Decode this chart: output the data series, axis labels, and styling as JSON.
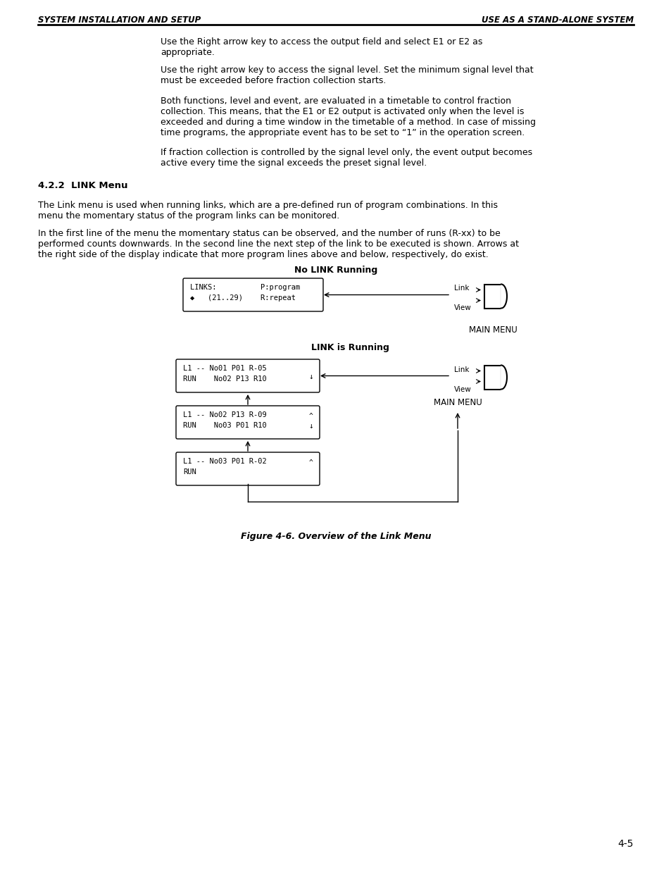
{
  "header_left": "SYSTEM INSTALLATION AND SETUP",
  "header_right": "USE AS A STAND-ALONE SYSTEM",
  "footer_page": "4-5",
  "bg_color": "#ffffff",
  "text_color": "#000000",
  "para1": "Use the Right arrow key to access the output field and select E1 or E2 as\nappropriate.",
  "para2": "Use the right arrow key to access the signal level. Set the minimum signal level that\nmust be exceeded before fraction collection starts.",
  "para3": "Both functions, level and event, are evaluated in a timetable to control fraction\ncollection. This means, that the E1 or E2 output is activated only when the level is\nexceeded and during a time window in the timetable of a method. In case of missing\ntime programs, the appropriate event has to be set to “1” in the operation screen.",
  "para4": "If fraction collection is controlled by the signal level only, the event output becomes\nactive every time the signal exceeds the preset signal level.",
  "section": "4.2.2  LINK Menu",
  "para5": "The Link menu is used when running links, which are a pre-defined run of program combinations. In this\nmenu the momentary status of the program links can be monitored.",
  "para6": "In the first line of the menu the momentary status can be observed, and the number of runs (R-xx) to be\nperformed counts downwards. In the second line the next step of the link to be executed is shown. Arrows at\nthe right side of the display indicate that more program lines above and below, respectively, do exist.",
  "fig_caption": "Figure 4-6. Overview of the Link Menu",
  "no_link_label": "No LINK Running",
  "link_running_label": "LINK is Running",
  "box1_line1": "LINKS:          P:program",
  "box1_line2": "◆   (21..29)    R:repeat",
  "box2_line1": "L1 -- No01 P01 R-05",
  "box2_line2": "RUN    No02 P13 R10",
  "box2_arrow": "↓",
  "box3_line1": "L1 -- No02 P13 R-09",
  "box3_arrow1": "^",
  "box3_line2": "RUN    No03 P01 R10",
  "box3_arrow2": "↓",
  "box4_line1": "L1 -- No03 P01 R-02",
  "box4_arrow": "^",
  "box4_line2": "RUN",
  "link_label": "Link",
  "view_label": "View",
  "main_menu_label": "MAIN MENU"
}
